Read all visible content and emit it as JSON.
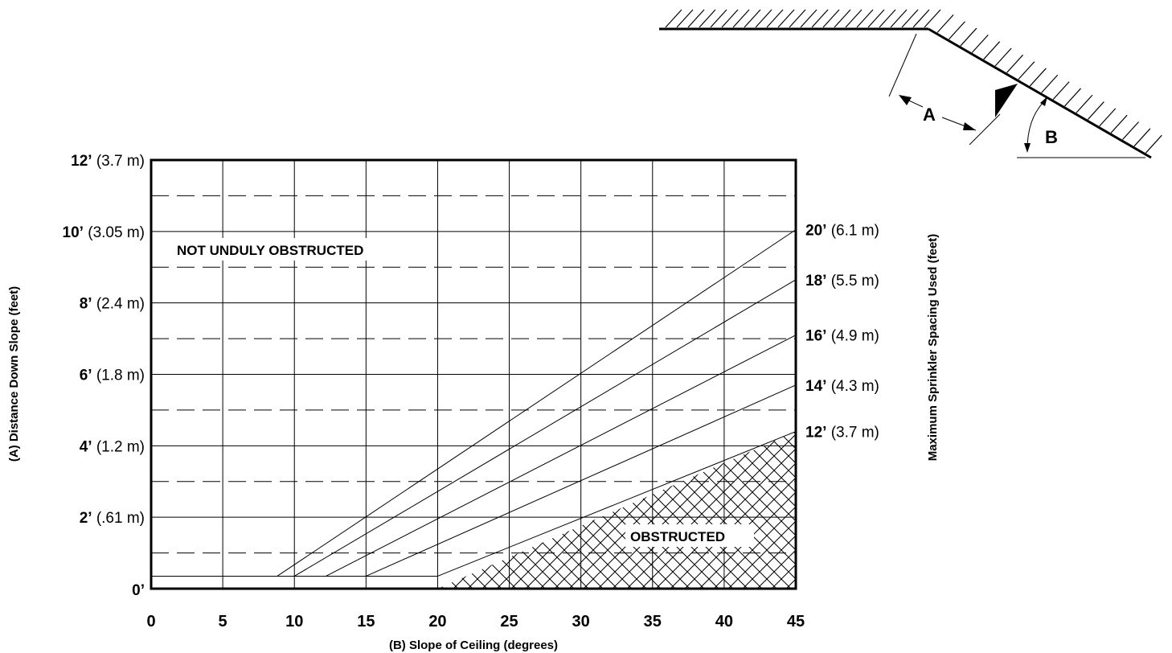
{
  "chart_data": {
    "type": "line",
    "xlabel": "(B) Slope of Ceiling (degrees)",
    "ylabel": "(A) Distance Down Slope (feet)",
    "y2label": "Maximum Sprinkler Spacing Used (feet)",
    "xlim": [
      0,
      45
    ],
    "ylim": [
      0,
      12
    ],
    "x_ticks": [
      {
        "value": 0,
        "label": "0"
      },
      {
        "value": 5,
        "label": "5"
      },
      {
        "value": 10,
        "label": "10"
      },
      {
        "value": 15,
        "label": "15"
      },
      {
        "value": 20,
        "label": "20"
      },
      {
        "value": 25,
        "label": "25"
      },
      {
        "value": 30,
        "label": "30"
      },
      {
        "value": 35,
        "label": "35"
      },
      {
        "value": 40,
        "label": "40"
      },
      {
        "value": 45,
        "label": "45"
      }
    ],
    "y_ticks": [
      {
        "value": 12,
        "main": "12’",
        "sub": " (3.7 m)"
      },
      {
        "value": 10,
        "main": "10’",
        "sub": " (3.05 m)"
      },
      {
        "value": 8,
        "main": "8’",
        "sub": " (2.4 m)"
      },
      {
        "value": 6,
        "main": "6’",
        "sub": " (1.8 m)"
      },
      {
        "value": 4,
        "main": "4’",
        "sub": " (1.2 m)"
      },
      {
        "value": 2,
        "main": "2’",
        "sub": " (.61 m)"
      },
      {
        "value": 0,
        "main": "0’",
        "sub": ""
      }
    ],
    "minor_y_gridlines": [
      1,
      3,
      5,
      7,
      9,
      11
    ],
    "base_line_y": 0.35,
    "series": [
      {
        "name": "20’ (6.1 m)",
        "label_main": "20’",
        "label_sub": " (6.1 m)",
        "x": [
          8.8,
          45
        ],
        "y": [
          0.35,
          10.05
        ]
      },
      {
        "name": "18’ (5.5 m)",
        "label_main": "18’",
        "label_sub": " (5.5 m)",
        "x": [
          10,
          45
        ],
        "y": [
          0.35,
          8.65
        ]
      },
      {
        "name": "16’ (4.9 m)",
        "label_main": "16’",
        "label_sub": " (4.9 m)",
        "x": [
          12.2,
          45
        ],
        "y": [
          0.35,
          7.1
        ]
      },
      {
        "name": "14’ (4.3 m)",
        "label_main": "14’",
        "label_sub": " (4.3 m)",
        "x": [
          15,
          45
        ],
        "y": [
          0.35,
          5.7
        ]
      },
      {
        "name": "12’ (3.7 m)",
        "label_main": "12’",
        "label_sub": " (3.7 m)",
        "x": [
          20,
          45
        ],
        "y": [
          0.35,
          4.4
        ]
      }
    ],
    "regions": {
      "unobstructed": "NOT UNDULY OBSTRUCTED",
      "obstructed": "OBSTRUCTED"
    },
    "grid": true
  },
  "diagram": {
    "label_a": "A",
    "label_b": "B"
  }
}
